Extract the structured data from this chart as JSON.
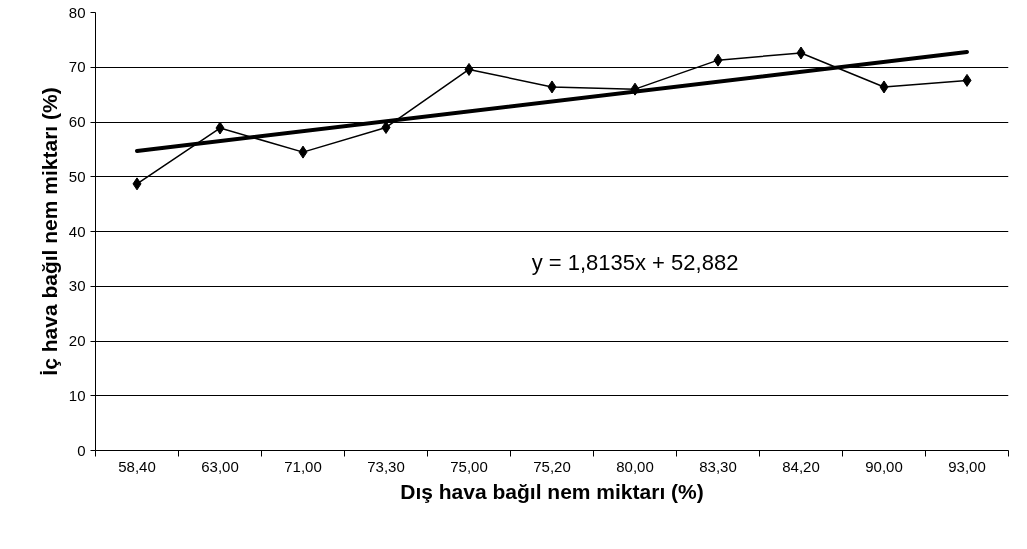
{
  "chart_data": {
    "type": "line",
    "xlabel": "Dış hava bağıl nem miktarı (%)",
    "ylabel": "İç hava bağıl nem miktarı (%)",
    "categories": [
      "58,40",
      "63,00",
      "71,00",
      "73,30",
      "75,00",
      "75,20",
      "80,00",
      "83,30",
      "84,20",
      "90,00",
      "93,00"
    ],
    "series": [
      {
        "color": "#000000",
        "values": [
          48.7,
          58.9,
          54.5,
          59.0,
          69.6,
          66.4,
          66.0,
          71.3,
          72.6,
          66.4,
          67.6
        ]
      },
      {
        "type": "line",
        "color": "#000000",
        "marker": "none",
        "x": [
          "58,40",
          "93,00"
        ],
        "values": [
          54.7,
          72.8
        ]
      }
    ],
    "annotations": [
      "y = 1,8135x + 52,882"
    ],
    "ylim": [
      0,
      80
    ],
    "yticks": [
      0,
      10,
      20,
      30,
      40,
      50,
      60,
      70,
      80
    ],
    "grid": "y",
    "marker": "diamond",
    "line_style": "solid"
  }
}
